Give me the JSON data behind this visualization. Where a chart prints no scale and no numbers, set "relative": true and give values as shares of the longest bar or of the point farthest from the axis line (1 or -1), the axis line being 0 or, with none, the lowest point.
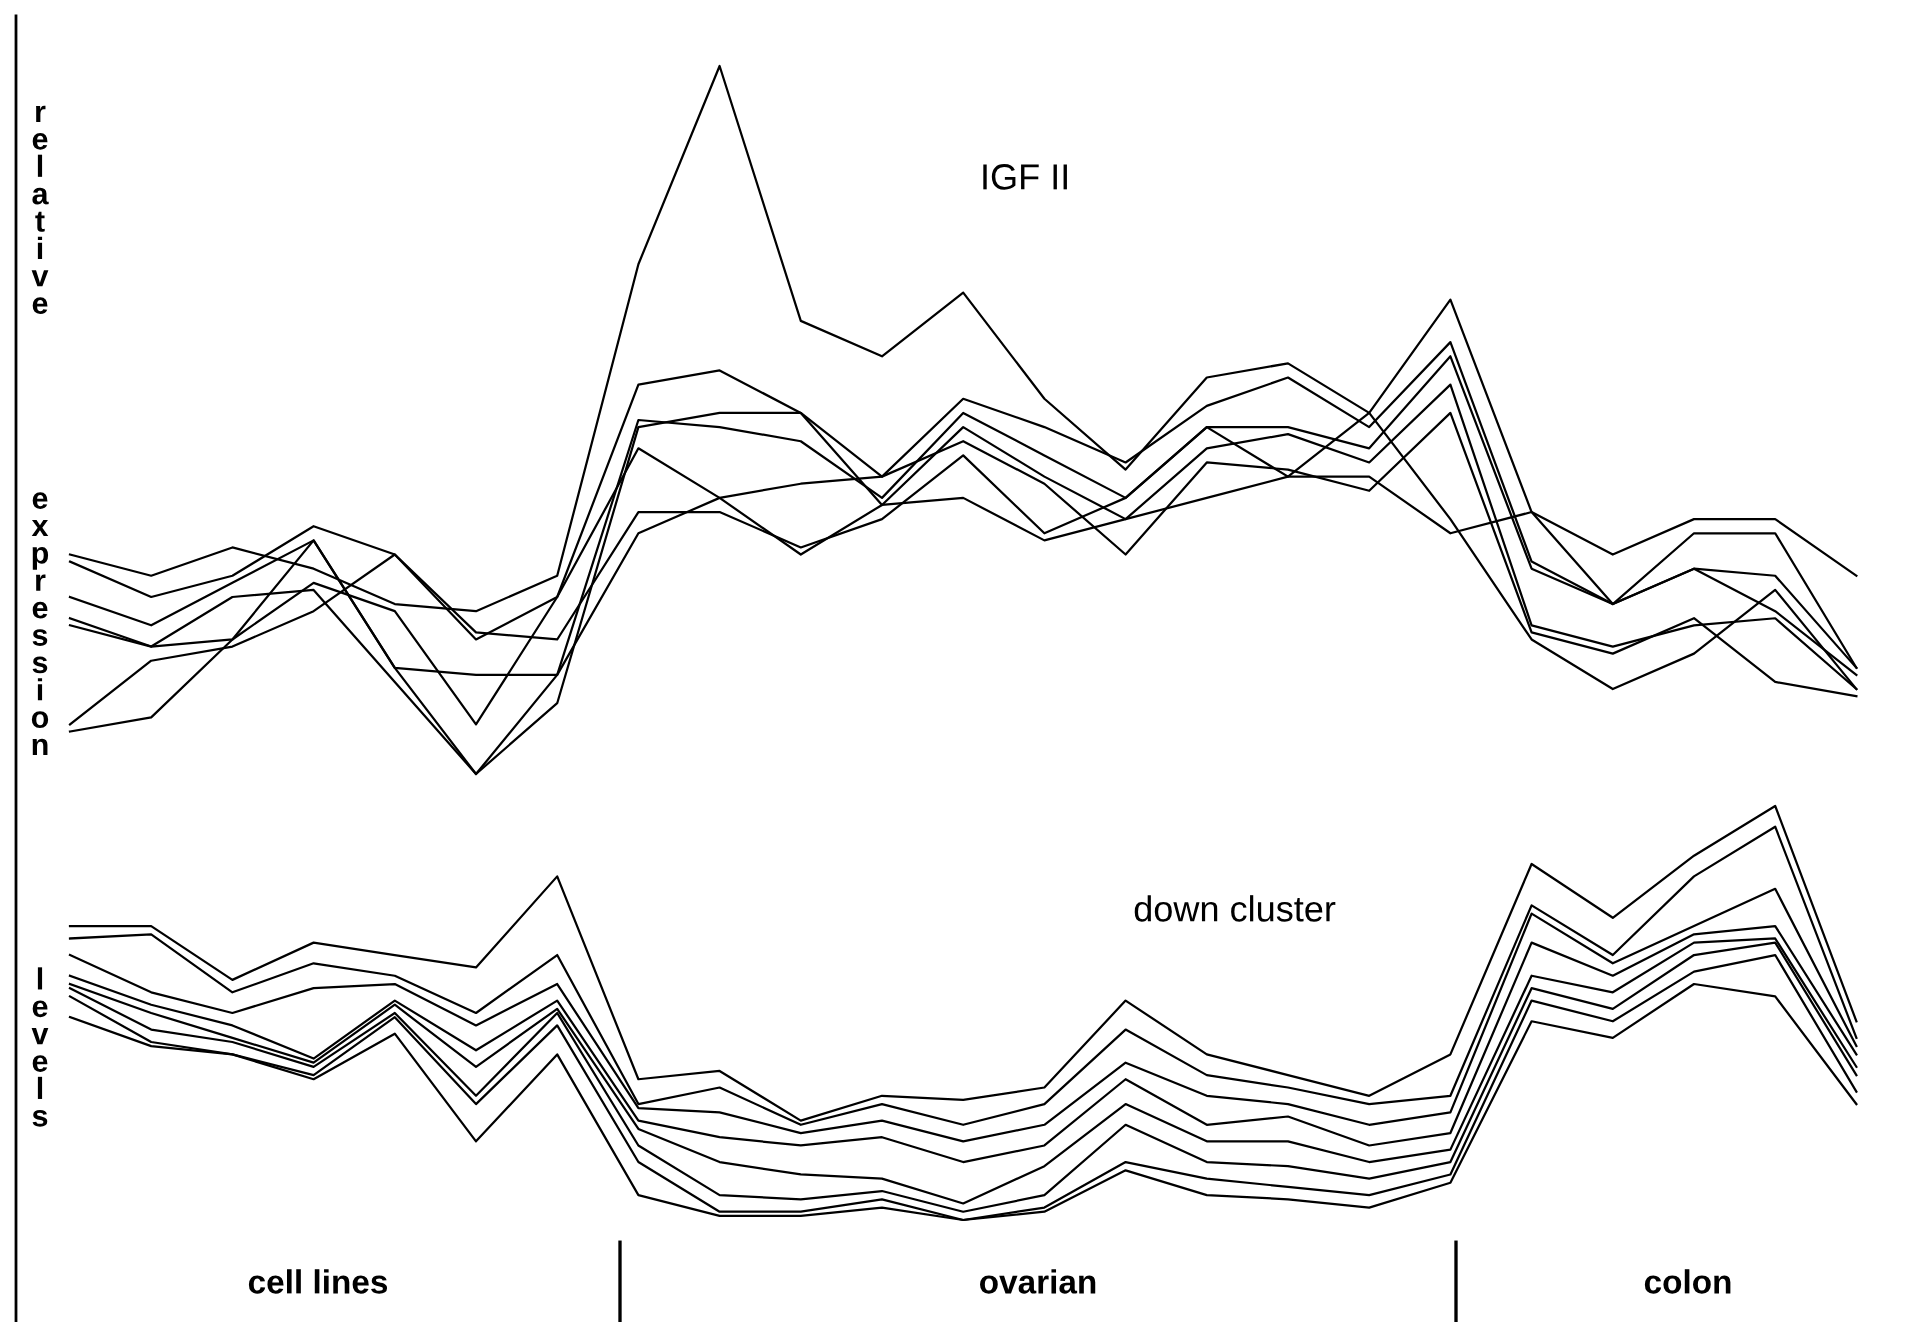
{
  "chart_data": [
    {
      "type": "line",
      "title": "IGF II",
      "ylabel": "relative expression levels",
      "relative": true,
      "categories": [
        null,
        null,
        null,
        null,
        null,
        null,
        null,
        null,
        null,
        null,
        null,
        null,
        null,
        null,
        null,
        null,
        null,
        null,
        null,
        null,
        null,
        null,
        null
      ],
      "series": [
        {
          "color": "#000000",
          "values": [
            0.31,
            0.28,
            0.32,
            0.29,
            0.24,
            0.23,
            0.28,
            0.72,
            1,
            0.64,
            0.59,
            0.68,
            0.53,
            0.43,
            0.56,
            0.58,
            0.51,
            0.67,
            0.37,
            0.31,
            0.36,
            0.36,
            0.28
          ]
        },
        {
          "color": "#000000",
          "values": [
            0.3,
            0.25,
            0.28,
            0.35,
            0.31,
            0.19,
            0.25,
            0.55,
            0.57,
            0.51,
            0.42,
            0.53,
            0.49,
            0.44,
            0.52,
            0.56,
            0.49,
            0.61,
            0.3,
            0.24,
            0.34,
            0.34,
            0.15
          ]
        },
        {
          "color": "#000000",
          "values": [
            0.25,
            0.21,
            0.27,
            0.33,
            0.15,
            0.14,
            0.14,
            0.5,
            0.49,
            0.47,
            0.39,
            0.51,
            0.45,
            0.39,
            0.49,
            0.49,
            0.46,
            0.59,
            0.29,
            0.24,
            0.29,
            0.23,
            0.14
          ]
        },
        {
          "color": "#000000",
          "values": [
            0.22,
            0.18,
            0.25,
            0.26,
            0.13,
            0,
            0.1,
            0.49,
            0.51,
            0.51,
            0.38,
            0.49,
            0.42,
            0.36,
            0.46,
            0.48,
            0.44,
            0.55,
            0.21,
            0.18,
            0.21,
            0.22,
            0.12
          ]
        },
        {
          "color": "#000000",
          "values": [
            0.21,
            0.18,
            0.19,
            0.27,
            0.23,
            0.07,
            0.25,
            0.46,
            0.39,
            0.41,
            0.42,
            0.47,
            0.41,
            0.31,
            0.44,
            0.43,
            0.4,
            0.51,
            0.2,
            0.17,
            0.22,
            0.13,
            0.11
          ]
        },
        {
          "color": "#000000",
          "values": [
            0.07,
            0.16,
            0.18,
            0.23,
            0.31,
            0.2,
            0.19,
            0.37,
            0.37,
            0.32,
            0.36,
            0.45,
            0.34,
            0.39,
            0.49,
            0.42,
            0.51,
            0.36,
            0.19,
            0.12,
            0.17,
            0.26,
            0.12
          ]
        },
        {
          "color": "#000000",
          "values": [
            0.06,
            0.08,
            0.19,
            0.33,
            0.15,
            0,
            0.14,
            0.34,
            0.39,
            0.31,
            0.38,
            0.39,
            0.33,
            0.36,
            0.39,
            0.42,
            0.42,
            0.34,
            0.37,
            0.24,
            0.29,
            0.28,
            0.15
          ]
        }
      ]
    },
    {
      "type": "line",
      "title": "down cluster",
      "relative": true,
      "categories": [
        null,
        null,
        null,
        null,
        null,
        null,
        null,
        null,
        null,
        null,
        null,
        null,
        null,
        null,
        null,
        null,
        null,
        null,
        null,
        null,
        null,
        null,
        null
      ],
      "annotations": [
        "cell lines",
        "ovarian",
        "colon"
      ],
      "series": [
        {
          "color": "#000000",
          "values": [
            0.71,
            0.71,
            0.58,
            0.67,
            0.64,
            0.61,
            0.83,
            0.34,
            0.36,
            0.24,
            0.3,
            0.29,
            0.32,
            0.53,
            0.4,
            0.35,
            0.3,
            0.4,
            0.86,
            0.73,
            0.88,
            1,
            0.48
          ]
        },
        {
          "color": "#000000",
          "values": [
            0.68,
            0.69,
            0.55,
            0.62,
            0.59,
            0.5,
            0.64,
            0.28,
            0.32,
            0.23,
            0.28,
            0.23,
            0.28,
            0.46,
            0.35,
            0.32,
            0.28,
            0.3,
            0.76,
            0.64,
            0.83,
            0.95,
            0.44
          ]
        },
        {
          "color": "#000000",
          "values": [
            0.64,
            0.55,
            0.5,
            0.56,
            0.57,
            0.47,
            0.57,
            0.27,
            0.26,
            0.21,
            0.24,
            0.19,
            0.23,
            0.38,
            0.3,
            0.28,
            0.23,
            0.26,
            0.74,
            0.62,
            0.71,
            0.8,
            0.42
          ]
        },
        {
          "color": "#000000",
          "values": [
            0.59,
            0.52,
            0.47,
            0.39,
            0.53,
            0.41,
            0.53,
            0.24,
            0.2,
            0.18,
            0.2,
            0.14,
            0.18,
            0.34,
            0.23,
            0.25,
            0.18,
            0.21,
            0.67,
            0.59,
            0.69,
            0.71,
            0.4
          ]
        },
        {
          "color": "#000000",
          "values": [
            0.57,
            0.5,
            0.44,
            0.38,
            0.52,
            0.37,
            0.51,
            0.22,
            0.14,
            0.11,
            0.1,
            0.04,
            0.13,
            0.28,
            0.19,
            0.19,
            0.14,
            0.17,
            0.59,
            0.55,
            0.67,
            0.68,
            0.37
          ]
        },
        {
          "color": "#000000",
          "values": [
            0.56,
            0.46,
            0.43,
            0.37,
            0.5,
            0.3,
            0.5,
            0.18,
            0.06,
            0.05,
            0.07,
            0.02,
            0.06,
            0.23,
            0.14,
            0.13,
            0.1,
            0.14,
            0.56,
            0.51,
            0.64,
            0.67,
            0.35
          ]
        },
        {
          "color": "#000000",
          "values": [
            0.54,
            0.43,
            0.4,
            0.35,
            0.49,
            0.28,
            0.47,
            0.14,
            0.02,
            0.02,
            0.05,
            0,
            0.03,
            0.14,
            0.1,
            0.08,
            0.06,
            0.11,
            0.53,
            0.48,
            0.6,
            0.64,
            0.31
          ]
        },
        {
          "color": "#000000",
          "values": [
            0.49,
            0.42,
            0.4,
            0.34,
            0.45,
            0.19,
            0.4,
            0.06,
            0.01,
            0.01,
            0.03,
            0,
            0.02,
            0.12,
            0.06,
            0.05,
            0.03,
            0.09,
            0.48,
            0.44,
            0.57,
            0.54,
            0.28
          ]
        }
      ]
    }
  ]
}
